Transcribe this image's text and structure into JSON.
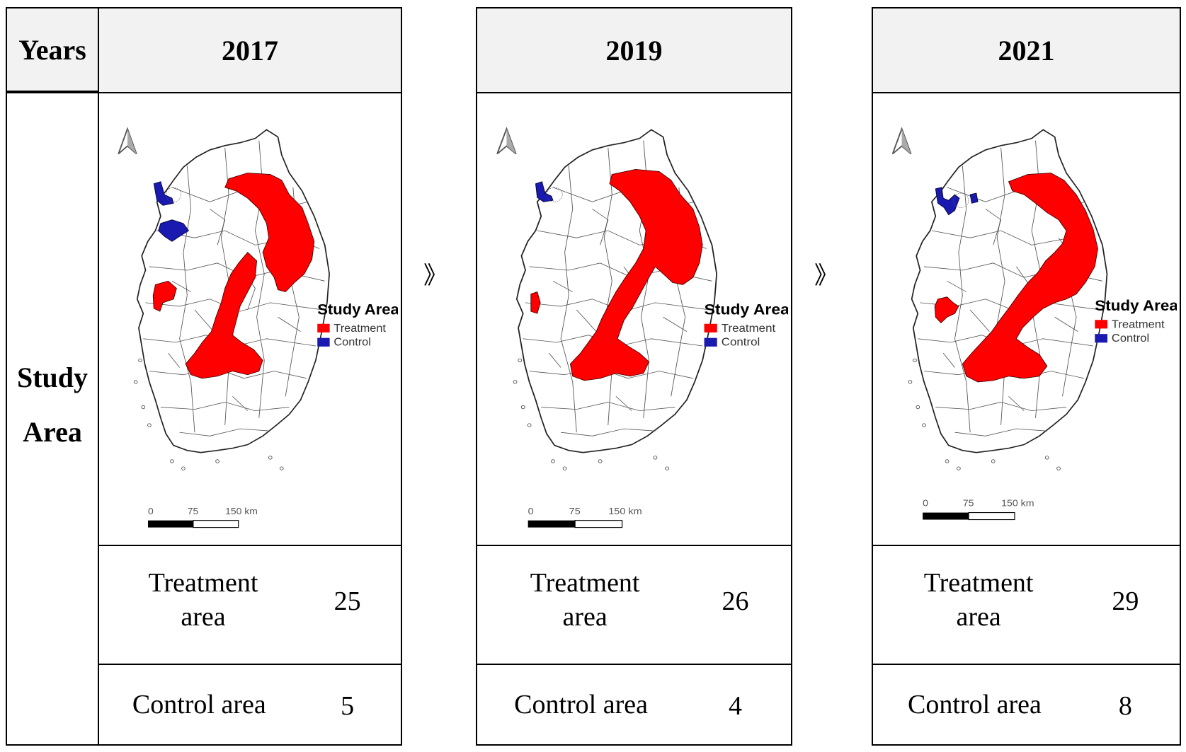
{
  "row_headers": {
    "years": "Years",
    "study_area_line1": "Study",
    "study_area_line2": "Area"
  },
  "panels": [
    {
      "year": "2017",
      "treatment_label_l1": "Treatment",
      "treatment_label_l2": "area",
      "treatment_value": "25",
      "control_label": "Control area",
      "control_value": "5"
    },
    {
      "year": "2019",
      "treatment_label_l1": "Treatment",
      "treatment_label_l2": "area",
      "treatment_value": "26",
      "control_label": "Control area",
      "control_value": "4"
    },
    {
      "year": "2021",
      "treatment_label_l1": "Treatment",
      "treatment_label_l2": "area",
      "treatment_value": "29",
      "control_label": "Control area",
      "control_value": "8"
    }
  ],
  "map_legend": {
    "title": "Study Area",
    "treatment": "Treatment",
    "control": "Control"
  },
  "scale_bar": {
    "zero": "0",
    "mid": "75",
    "end": "150 km"
  },
  "arrow_glyph": "》",
  "colors": {
    "treatment": "#ff0000",
    "control": "#1a1ab0",
    "header_bg": "#f2f2f2"
  },
  "icons": {
    "north_arrow": "north-arrow-icon"
  }
}
